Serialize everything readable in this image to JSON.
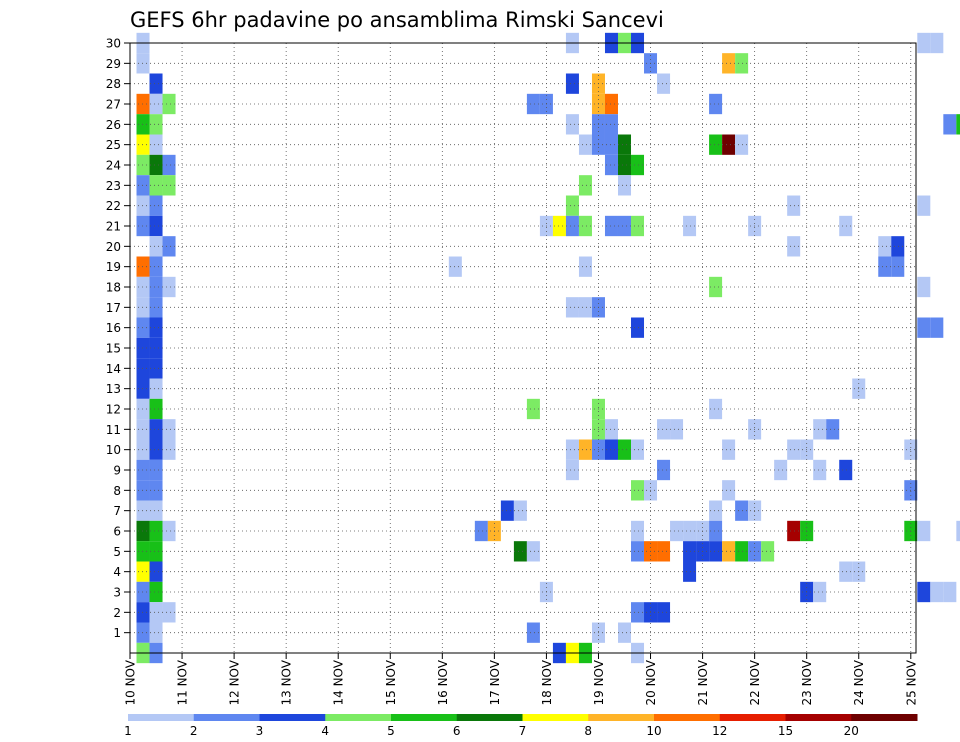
{
  "chart_data": {
    "type": "heatmap",
    "title": "GEFS 6hr padavine po ansamblima Rimski Sancevi",
    "xlabel": "",
    "ylabel": "",
    "x_ticks": [
      "10 NOV",
      "11 NOV",
      "12 NOV",
      "13 NOV",
      "14 NOV",
      "15 NOV",
      "16 NOV",
      "17 NOV",
      "18 NOV",
      "19 NOV",
      "20 NOV",
      "21 NOV",
      "22 NOV",
      "23 NOV",
      "24 NOV",
      "25 NOV"
    ],
    "y_ticks": [
      "1",
      "2",
      "3",
      "4",
      "5",
      "6",
      "7",
      "8",
      "9",
      "10",
      "11",
      "12",
      "13",
      "14",
      "15",
      "16",
      "17",
      "18",
      "19",
      "20",
      "21",
      "22",
      "23",
      "24",
      "25",
      "26",
      "27",
      "28",
      "29",
      "30"
    ],
    "xlim_days": [
      10,
      25.1
    ],
    "ylim_members": [
      0,
      30
    ],
    "grid": "dotted",
    "colorbar": {
      "labels": [
        "1",
        "2",
        "3",
        "4",
        "5",
        "6",
        "7",
        "8",
        "10",
        "12",
        "15",
        "20"
      ],
      "colors": [
        "#b4c8f5",
        "#5f87f0",
        "#1e46dc",
        "#7ceb64",
        "#18c018",
        "#0a780a",
        "#ffff00",
        "#ffb428",
        "#ff6e00",
        "#e61e00",
        "#a50000",
        "#6e0000"
      ]
    },
    "values_note": "cells = [member, day, color_class]; color_class 0..11 indexes colorbar.colors",
    "cells": [
      [
        30,
        10.25,
        0
      ],
      [
        29,
        10.25,
        0
      ],
      [
        27,
        10.25,
        8
      ],
      [
        26,
        10.25,
        4
      ],
      [
        25,
        10.25,
        6
      ],
      [
        24,
        10.25,
        3
      ],
      [
        23,
        10.25,
        1
      ],
      [
        22,
        10.25,
        0
      ],
      [
        21,
        10.25,
        1
      ],
      [
        19,
        10.25,
        8
      ],
      [
        18,
        10.25,
        0
      ],
      [
        17,
        10.25,
        0
      ],
      [
        16,
        10.25,
        1
      ],
      [
        15,
        10.25,
        2
      ],
      [
        14,
        10.25,
        2
      ],
      [
        13,
        10.25,
        2
      ],
      [
        12,
        10.25,
        0
      ],
      [
        11,
        10.25,
        0
      ],
      [
        10,
        10.25,
        0
      ],
      [
        9,
        10.25,
        1
      ],
      [
        8,
        10.25,
        1
      ],
      [
        7,
        10.25,
        0
      ],
      [
        6,
        10.25,
        5
      ],
      [
        5,
        10.25,
        4
      ],
      [
        4,
        10.25,
        6
      ],
      [
        3,
        10.25,
        1
      ],
      [
        2,
        10.25,
        2
      ],
      [
        1,
        10.25,
        1
      ],
      [
        0,
        10.25,
        3
      ],
      [
        28,
        10.5,
        2
      ],
      [
        27,
        10.5,
        0
      ],
      [
        26,
        10.5,
        3
      ],
      [
        25,
        10.5,
        0
      ],
      [
        24,
        10.5,
        5
      ],
      [
        23,
        10.5,
        3
      ],
      [
        22,
        10.5,
        1
      ],
      [
        21,
        10.5,
        2
      ],
      [
        20,
        10.5,
        0
      ],
      [
        19,
        10.5,
        1
      ],
      [
        18,
        10.5,
        1
      ],
      [
        17,
        10.5,
        1
      ],
      [
        16,
        10.5,
        2
      ],
      [
        15,
        10.5,
        2
      ],
      [
        14,
        10.5,
        2
      ],
      [
        13,
        10.5,
        0
      ],
      [
        12,
        10.5,
        4
      ],
      [
        11,
        10.5,
        2
      ],
      [
        10,
        10.5,
        2
      ],
      [
        9,
        10.5,
        1
      ],
      [
        8,
        10.5,
        1
      ],
      [
        7,
        10.5,
        0
      ],
      [
        6,
        10.5,
        4
      ],
      [
        5,
        10.5,
        4
      ],
      [
        4,
        10.5,
        2
      ],
      [
        3,
        10.5,
        4
      ],
      [
        2,
        10.5,
        0
      ],
      [
        1,
        10.5,
        0
      ],
      [
        0,
        10.5,
        1
      ],
      [
        27,
        10.75,
        3
      ],
      [
        24,
        10.75,
        1
      ],
      [
        23,
        10.75,
        3
      ],
      [
        20,
        10.75,
        1
      ],
      [
        18,
        10.75,
        0
      ],
      [
        11,
        10.75,
        0
      ],
      [
        10,
        10.75,
        0
      ],
      [
        6,
        10.75,
        0
      ],
      [
        2,
        10.75,
        0
      ],
      [
        19,
        16.25,
        0
      ],
      [
        6,
        16.75,
        1
      ],
      [
        6,
        17,
        7
      ],
      [
        7,
        17.25,
        2
      ],
      [
        7,
        17.5,
        0
      ],
      [
        5,
        17.5,
        5
      ],
      [
        27,
        17.75,
        1
      ],
      [
        12,
        17.75,
        3
      ],
      [
        5,
        17.75,
        0
      ],
      [
        1,
        17.75,
        1
      ],
      [
        27,
        18,
        1
      ],
      [
        21,
        18,
        0
      ],
      [
        3,
        18,
        0
      ],
      [
        21,
        18.25,
        6
      ],
      [
        0,
        18.25,
        2
      ],
      [
        30,
        18.5,
        0
      ],
      [
        28,
        18.5,
        2
      ],
      [
        26,
        18.5,
        0
      ],
      [
        22,
        18.5,
        3
      ],
      [
        21,
        18.5,
        1
      ],
      [
        17,
        18.5,
        0
      ],
      [
        10,
        18.5,
        0
      ],
      [
        9,
        18.5,
        0
      ],
      [
        0,
        18.5,
        6
      ],
      [
        25,
        18.75,
        0
      ],
      [
        23,
        18.75,
        3
      ],
      [
        21,
        18.75,
        3
      ],
      [
        19,
        18.75,
        0
      ],
      [
        17,
        18.75,
        0
      ],
      [
        10,
        18.75,
        7
      ],
      [
        0,
        18.75,
        4
      ],
      [
        28,
        19,
        7
      ],
      [
        27,
        19,
        7
      ],
      [
        26,
        19,
        1
      ],
      [
        25,
        19,
        1
      ],
      [
        17,
        19,
        1
      ],
      [
        12,
        19,
        3
      ],
      [
        11,
        19,
        3
      ],
      [
        10,
        19,
        1
      ],
      [
        1,
        19,
        0
      ],
      [
        30,
        19.25,
        2
      ],
      [
        27,
        19.25,
        8
      ],
      [
        26,
        19.25,
        1
      ],
      [
        25,
        19.25,
        1
      ],
      [
        24,
        19.25,
        1
      ],
      [
        21,
        19.25,
        1
      ],
      [
        11,
        19.25,
        0
      ],
      [
        10,
        19.25,
        2
      ],
      [
        30,
        19.5,
        3
      ],
      [
        25,
        19.5,
        5
      ],
      [
        24,
        19.5,
        5
      ],
      [
        23,
        19.5,
        0
      ],
      [
        21,
        19.5,
        1
      ],
      [
        10,
        19.5,
        4
      ],
      [
        1,
        19.5,
        0
      ],
      [
        30,
        19.75,
        2
      ],
      [
        24,
        19.75,
        4
      ],
      [
        21,
        19.75,
        3
      ],
      [
        16,
        19.75,
        2
      ],
      [
        10,
        19.75,
        0
      ],
      [
        8,
        19.75,
        3
      ],
      [
        6,
        19.75,
        0
      ],
      [
        5,
        19.75,
        1
      ],
      [
        2,
        19.75,
        1
      ],
      [
        0,
        19.75,
        0
      ],
      [
        29,
        20,
        1
      ],
      [
        8,
        20,
        0
      ],
      [
        5,
        20,
        8
      ],
      [
        2,
        20,
        2
      ],
      [
        28,
        20.25,
        0
      ],
      [
        11,
        20.25,
        0
      ],
      [
        9,
        20.25,
        1
      ],
      [
        5,
        20.25,
        8
      ],
      [
        2,
        20.25,
        2
      ],
      [
        11,
        20.5,
        0
      ],
      [
        6,
        20.5,
        0
      ],
      [
        21,
        20.75,
        0
      ],
      [
        6,
        20.75,
        0
      ],
      [
        5,
        20.75,
        2
      ],
      [
        4,
        20.75,
        2
      ],
      [
        6,
        21,
        0
      ],
      [
        5,
        21,
        2
      ],
      [
        27,
        21.25,
        1
      ],
      [
        25,
        21.25,
        4
      ],
      [
        18,
        21.25,
        3
      ],
      [
        12,
        21.25,
        0
      ],
      [
        7,
        21.25,
        0
      ],
      [
        6,
        21.25,
        1
      ],
      [
        5,
        21.25,
        2
      ],
      [
        29,
        21.5,
        7
      ],
      [
        25,
        21.5,
        11
      ],
      [
        10,
        21.5,
        0
      ],
      [
        8,
        21.5,
        0
      ],
      [
        5,
        21.5,
        7
      ],
      [
        29,
        21.75,
        3
      ],
      [
        25,
        21.75,
        0
      ],
      [
        7,
        21.75,
        1
      ],
      [
        5,
        21.75,
        4
      ],
      [
        21,
        22,
        0
      ],
      [
        11,
        22,
        0
      ],
      [
        7,
        22,
        0
      ],
      [
        5,
        22,
        1
      ],
      [
        5,
        22.25,
        3
      ],
      [
        9,
        22.5,
        0
      ],
      [
        22,
        22.75,
        0
      ],
      [
        20,
        22.75,
        0
      ],
      [
        10,
        22.75,
        0
      ],
      [
        6,
        22.75,
        10
      ],
      [
        10,
        23,
        0
      ],
      [
        6,
        23,
        4
      ],
      [
        3,
        23,
        2
      ],
      [
        11,
        23.25,
        0
      ],
      [
        9,
        23.25,
        0
      ],
      [
        3,
        23.25,
        0
      ],
      [
        11,
        23.5,
        1
      ],
      [
        21,
        23.75,
        0
      ],
      [
        9,
        23.75,
        2
      ],
      [
        4,
        23.75,
        0
      ],
      [
        13,
        24,
        0
      ],
      [
        4,
        24,
        0
      ],
      [
        20,
        24.5,
        0
      ],
      [
        19,
        24.5,
        1
      ],
      [
        20,
        24.75,
        2
      ],
      [
        19,
        24.75,
        1
      ],
      [
        10,
        25,
        0
      ],
      [
        8,
        25,
        1
      ],
      [
        6,
        25,
        4
      ],
      [
        30,
        25.25,
        0
      ],
      [
        22,
        25.25,
        0
      ],
      [
        18,
        25.25,
        0
      ],
      [
        16,
        25.25,
        1
      ],
      [
        6,
        25.25,
        0
      ],
      [
        3,
        25.25,
        2
      ],
      [
        30,
        25.5,
        0
      ],
      [
        16,
        25.5,
        1
      ],
      [
        3,
        25.5,
        0
      ],
      [
        26,
        25.75,
        1
      ],
      [
        3,
        25.75,
        0
      ],
      [
        26,
        26,
        4
      ],
      [
        6,
        26,
        0
      ]
    ]
  }
}
